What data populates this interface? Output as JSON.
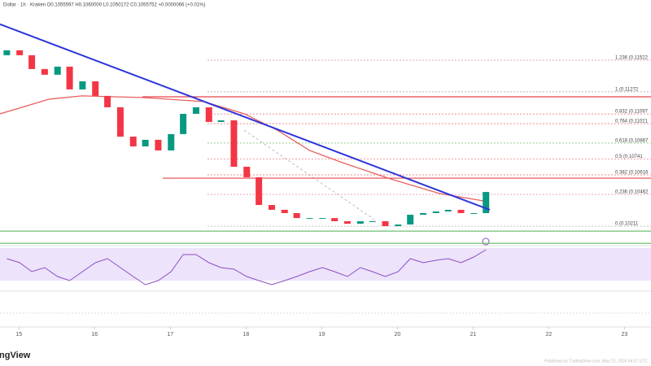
{
  "chart_data": {
    "type": "candlestick",
    "header": "Dollar · 1h · Kraken  O0.1055597  H0.1060000  L0.1050172  C0.1055752  +0.0000066 (+0.01%)",
    "published": "Published on TradingView.com, May 21, 2026 04:57 UTC",
    "logo": "ingView",
    "x": [
      14.84,
      15.01,
      15.17,
      15.34,
      15.51,
      15.67,
      15.84,
      16.01,
      16.17,
      16.34,
      16.51,
      16.67,
      16.84,
      17.01,
      17.17,
      17.34,
      17.51,
      17.67,
      17.84,
      18.01,
      18.17,
      18.34,
      18.51,
      18.67,
      18.84,
      19.01,
      19.17,
      19.34,
      19.51,
      19.67,
      19.84,
      20.01,
      20.17,
      20.34,
      20.51,
      20.67,
      20.84,
      21.01,
      21.17
    ],
    "open": [
      0.11561,
      0.116,
      0.11561,
      0.11452,
      0.11407,
      0.11471,
      0.11291,
      0.11355,
      0.1124,
      0.1115,
      0.10918,
      0.10841,
      0.10893,
      0.10809,
      0.10938,
      0.11098,
      0.1115,
      0.11034,
      0.11047,
      0.1068,
      0.10597,
      0.10378,
      0.1034,
      0.10314,
      0.10275,
      0.10275,
      0.10275,
      0.1025,
      0.1023,
      0.1025,
      0.1025,
      0.10211,
      0.10224,
      0.10301,
      0.10314,
      0.10327,
      0.1034,
      0.10314,
      0.10314
    ],
    "close": [
      0.116,
      0.11561,
      0.11452,
      0.11407,
      0.11471,
      0.11291,
      0.11355,
      0.1124,
      0.1115,
      0.10918,
      0.10841,
      0.10893,
      0.10809,
      0.10938,
      0.11098,
      0.1115,
      0.11034,
      0.11047,
      0.1068,
      0.10597,
      0.10378,
      0.1034,
      0.10314,
      0.10275,
      0.10275,
      0.10275,
      0.1025,
      0.1023,
      0.1025,
      0.1025,
      0.10211,
      0.10224,
      0.10301,
      0.10314,
      0.10327,
      0.1034,
      0.10314,
      0.10314,
      0.10481
    ],
    "up_color": "#089981",
    "down_color": "#f23645",
    "xlim": [
      14.75,
      23.35
    ],
    "ylim": [
      0.1007,
      0.11933
    ],
    "xticks": [
      15,
      16,
      17,
      18,
      19,
      20,
      21,
      22,
      23
    ],
    "moving_average": {
      "color": "#e8605e",
      "x": [
        14.75,
        15.4,
        15.83,
        16.63,
        17.44,
        17.98,
        18.41,
        18.84,
        19.27,
        19.91,
        20.56,
        21.2
      ],
      "values": [
        0.11098,
        0.11214,
        0.1124,
        0.11227,
        0.11195,
        0.11098,
        0.1097,
        0.10809,
        0.10713,
        0.10584,
        0.10468,
        0.10404
      ]
    },
    "trendline": {
      "color": "#2b35d8",
      "x": [
        14.75,
        21.22
      ],
      "values": [
        0.11806,
        0.1034
      ]
    },
    "resistance": [
      {
        "color": "#e8444a",
        "x": 16.63,
        "value": 0.11233
      },
      {
        "color": "#e8444a",
        "x": 16.9,
        "value": 0.1059
      }
    ],
    "support": [
      {
        "color": "#4caf50",
        "value": 0.10172
      },
      {
        "color": "#4caf50",
        "value": 0.10076
      }
    ],
    "fib_start": 17.49,
    "fib": [
      {
        "level": 1.236,
        "price": 0.11522,
        "label": "1.236 (0.11522",
        "color": "#e57fb0"
      },
      {
        "level": 1,
        "price": 0.11272,
        "label": "1 (0.11272",
        "color": "#9e9e9e"
      },
      {
        "level": 0.832,
        "price": 0.11097,
        "label": "0.832 (0.11097",
        "color": "#e8606a"
      },
      {
        "level": 0.764,
        "price": 0.11021,
        "label": "0.764 (0.11021",
        "color": "#e8606a"
      },
      {
        "level": 0.618,
        "price": 0.10867,
        "label": "0.618 (0.10867",
        "color": "#4caf50"
      },
      {
        "level": 0.5,
        "price": 0.10741,
        "label": "0.5 (0.10741",
        "color": "#e8606a"
      },
      {
        "level": 0.382,
        "price": 0.10616,
        "label": "0.382 (0.10616",
        "color": "#e8606a"
      },
      {
        "level": 0.236,
        "price": 0.10462,
        "label": "0.236 (0.10462",
        "color": "#e57fb0"
      },
      {
        "level": 0,
        "price": 0.10211,
        "label": "0 (0.10211",
        "color": "#9e9e9e"
      }
    ],
    "rsi": {
      "color": "#8a4fc7",
      "ylim": [
        20,
        75
      ],
      "band": [
        30,
        70
      ],
      "values": [
        57,
        52,
        41,
        46,
        35,
        30,
        41,
        52,
        57,
        46,
        35,
        25,
        30,
        41,
        62,
        62,
        52,
        46,
        44,
        35,
        30,
        25,
        30,
        35,
        41,
        46,
        41,
        35,
        46,
        41,
        35,
        41,
        57,
        52,
        55,
        57,
        52,
        59,
        68
      ]
    }
  }
}
